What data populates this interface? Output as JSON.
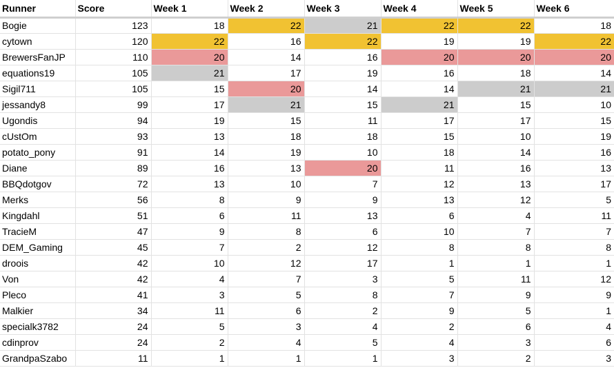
{
  "colors": {
    "gold": "#f1c232",
    "grey": "#cccccc",
    "red": "#ea9999"
  },
  "columns": [
    "Runner",
    "Score",
    "Week 1",
    "Week 2",
    "Week 3",
    "Week 4",
    "Week 5",
    "Week 6"
  ],
  "rows": [
    {
      "runner": "Bogie",
      "score": "123",
      "weeks": [
        "18",
        "22",
        "21",
        "22",
        "22",
        "18"
      ],
      "hl": [
        "",
        "gold",
        "grey",
        "gold",
        "gold",
        ""
      ]
    },
    {
      "runner": "cytown",
      "score": "120",
      "weeks": [
        "22",
        "16",
        "22",
        "19",
        "19",
        "22"
      ],
      "hl": [
        "gold",
        "",
        "gold",
        "",
        "",
        "gold"
      ]
    },
    {
      "runner": "BrewersFanJP",
      "score": "110",
      "weeks": [
        "20",
        "14",
        "16",
        "20",
        "20",
        "20"
      ],
      "hl": [
        "red",
        "",
        "",
        "red",
        "red",
        "red"
      ]
    },
    {
      "runner": "equations19",
      "score": "105",
      "weeks": [
        "21",
        "17",
        "19",
        "16",
        "18",
        "14"
      ],
      "hl": [
        "grey",
        "",
        "",
        "",
        "",
        ""
      ]
    },
    {
      "runner": "Sigil711",
      "score": "105",
      "weeks": [
        "15",
        "20",
        "14",
        "14",
        "21",
        "21"
      ],
      "hl": [
        "",
        "red",
        "",
        "",
        "grey",
        "grey"
      ]
    },
    {
      "runner": "jessandy8",
      "score": "99",
      "weeks": [
        "17",
        "21",
        "15",
        "21",
        "15",
        "10"
      ],
      "hl": [
        "",
        "grey",
        "",
        "grey",
        "",
        ""
      ]
    },
    {
      "runner": "Ugondis",
      "score": "94",
      "weeks": [
        "19",
        "15",
        "11",
        "17",
        "17",
        "15"
      ],
      "hl": [
        "",
        "",
        "",
        "",
        "",
        ""
      ]
    },
    {
      "runner": "cUstOm",
      "score": "93",
      "weeks": [
        "13",
        "18",
        "18",
        "15",
        "10",
        "19"
      ],
      "hl": [
        "",
        "",
        "",
        "",
        "",
        ""
      ]
    },
    {
      "runner": "potato_pony",
      "score": "91",
      "weeks": [
        "14",
        "19",
        "10",
        "18",
        "14",
        "16"
      ],
      "hl": [
        "",
        "",
        "",
        "",
        "",
        ""
      ]
    },
    {
      "runner": "Diane",
      "score": "89",
      "weeks": [
        "16",
        "13",
        "20",
        "11",
        "16",
        "13"
      ],
      "hl": [
        "",
        "",
        "red",
        "",
        "",
        ""
      ]
    },
    {
      "runner": "BBQdotgov",
      "score": "72",
      "weeks": [
        "13",
        "10",
        "7",
        "12",
        "13",
        "17"
      ],
      "hl": [
        "",
        "",
        "",
        "",
        "",
        ""
      ]
    },
    {
      "runner": "Merks",
      "score": "56",
      "weeks": [
        "8",
        "9",
        "9",
        "13",
        "12",
        "5"
      ],
      "hl": [
        "",
        "",
        "",
        "",
        "",
        ""
      ]
    },
    {
      "runner": "Kingdahl",
      "score": "51",
      "weeks": [
        "6",
        "11",
        "13",
        "6",
        "4",
        "11"
      ],
      "hl": [
        "",
        "",
        "",
        "",
        "",
        ""
      ]
    },
    {
      "runner": "TracieM",
      "score": "47",
      "weeks": [
        "9",
        "8",
        "6",
        "10",
        "7",
        "7"
      ],
      "hl": [
        "",
        "",
        "",
        "",
        "",
        ""
      ]
    },
    {
      "runner": "DEM_Gaming",
      "score": "45",
      "weeks": [
        "7",
        "2",
        "12",
        "8",
        "8",
        "8"
      ],
      "hl": [
        "",
        "",
        "",
        "",
        "",
        ""
      ]
    },
    {
      "runner": "droois",
      "score": "42",
      "weeks": [
        "10",
        "12",
        "17",
        "1",
        "1",
        "1"
      ],
      "hl": [
        "",
        "",
        "",
        "",
        "",
        ""
      ]
    },
    {
      "runner": "Von",
      "score": "42",
      "weeks": [
        "4",
        "7",
        "3",
        "5",
        "11",
        "12"
      ],
      "hl": [
        "",
        "",
        "",
        "",
        "",
        ""
      ]
    },
    {
      "runner": "Pleco",
      "score": "41",
      "weeks": [
        "3",
        "5",
        "8",
        "7",
        "9",
        "9"
      ],
      "hl": [
        "",
        "",
        "",
        "",
        "",
        ""
      ]
    },
    {
      "runner": "Malkier",
      "score": "34",
      "weeks": [
        "11",
        "6",
        "2",
        "9",
        "5",
        "1"
      ],
      "hl": [
        "",
        "",
        "",
        "",
        "",
        ""
      ]
    },
    {
      "runner": "specialk3782",
      "score": "24",
      "weeks": [
        "5",
        "3",
        "4",
        "2",
        "6",
        "4"
      ],
      "hl": [
        "",
        "",
        "",
        "",
        "",
        ""
      ]
    },
    {
      "runner": "cdinprov",
      "score": "24",
      "weeks": [
        "2",
        "4",
        "5",
        "4",
        "3",
        "6"
      ],
      "hl": [
        "",
        "",
        "",
        "",
        "",
        ""
      ]
    },
    {
      "runner": "GrandpaSzabo",
      "score": "11",
      "weeks": [
        "1",
        "1",
        "1",
        "3",
        "2",
        "3"
      ],
      "hl": [
        "",
        "",
        "",
        "",
        "",
        ""
      ]
    }
  ]
}
